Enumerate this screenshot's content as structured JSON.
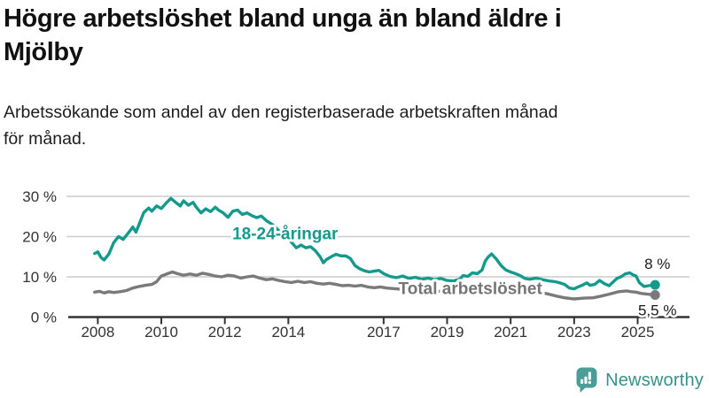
{
  "header": {
    "title_line1": "Högre arbetslöshet bland unga än bland äldre i",
    "title_line2": "Mjölby",
    "subtitle_line1": "Arbetssökande som andel av den registerbaserade arbetskraften månad",
    "subtitle_line2": "för månad."
  },
  "footer": {
    "logo_text": "Newsworthy"
  },
  "colors": {
    "youth_line": "#149a8c",
    "total_line": "#7a7a7a",
    "total_label": "#757575",
    "grid": "#cccccc",
    "axis": "#333333",
    "tick_label": "#333333",
    "end_label": "#1a1a1a",
    "title": "#111111",
    "logo_teal": "#4b9e96",
    "logo_text_teal": "#38918b"
  },
  "chart_data": {
    "type": "line",
    "title": "Högre arbetslöshet bland unga än bland äldre i Mjölby",
    "subtitle": "Arbetssökande som andel av den registerbaserade arbetskraften månad för månad.",
    "unit": "%",
    "grid": "horizontal",
    "legend_position": "inline-labels",
    "xlim": [
      2007.85,
      2025.6
    ],
    "ylim": [
      0,
      31
    ],
    "y_ticks": [
      {
        "value": 0,
        "label": "0 %"
      },
      {
        "value": 10,
        "label": "10 %"
      },
      {
        "value": 20,
        "label": "20 %"
      },
      {
        "value": 30,
        "label": "30 %"
      }
    ],
    "x_ticks": [
      {
        "value": 2008,
        "label": "2008"
      },
      {
        "value": 2010,
        "label": "2010"
      },
      {
        "value": 2012,
        "label": "2012"
      },
      {
        "value": 2014,
        "label": "2014"
      },
      {
        "value": 2017,
        "label": "2017"
      },
      {
        "value": 2019,
        "label": "2019"
      },
      {
        "value": 2021,
        "label": "2021"
      },
      {
        "value": 2023,
        "label": "2023"
      },
      {
        "value": 2025,
        "label": "2025"
      }
    ],
    "series": [
      {
        "name": "18-24-åringar",
        "color": "#149a8c",
        "label_color": "#149a8c",
        "end_label": "8 %",
        "end_value": 8.0,
        "label_pos": {
          "year": 2013.9,
          "pct": 20.8
        },
        "end_label_pos": {
          "year": 2025.62,
          "pct": 13.3
        },
        "points": [
          [
            2007.9,
            15.8
          ],
          [
            2008.0,
            16.2
          ],
          [
            2008.1,
            14.8
          ],
          [
            2008.2,
            14.2
          ],
          [
            2008.35,
            15.7
          ],
          [
            2008.5,
            18.5
          ],
          [
            2008.65,
            20.0
          ],
          [
            2008.8,
            19.3
          ],
          [
            2009.0,
            21.3
          ],
          [
            2009.1,
            22.4
          ],
          [
            2009.2,
            21.1
          ],
          [
            2009.35,
            24.0
          ],
          [
            2009.45,
            26.0
          ],
          [
            2009.6,
            27.1
          ],
          [
            2009.7,
            26.3
          ],
          [
            2009.85,
            27.6
          ],
          [
            2010.0,
            27.0
          ],
          [
            2010.15,
            28.3
          ],
          [
            2010.3,
            29.5
          ],
          [
            2010.45,
            28.5
          ],
          [
            2010.6,
            27.6
          ],
          [
            2010.7,
            28.9
          ],
          [
            2010.85,
            27.8
          ],
          [
            2011.0,
            28.5
          ],
          [
            2011.1,
            27.3
          ],
          [
            2011.25,
            25.9
          ],
          [
            2011.4,
            26.9
          ],
          [
            2011.55,
            26.2
          ],
          [
            2011.7,
            27.3
          ],
          [
            2011.8,
            26.6
          ],
          [
            2011.95,
            25.9
          ],
          [
            2012.1,
            24.8
          ],
          [
            2012.25,
            26.3
          ],
          [
            2012.4,
            26.6
          ],
          [
            2012.55,
            25.5
          ],
          [
            2012.7,
            25.9
          ],
          [
            2012.85,
            25.2
          ],
          [
            2013.0,
            24.7
          ],
          [
            2013.15,
            25.1
          ],
          [
            2013.3,
            24.0
          ],
          [
            2013.5,
            23.0
          ],
          [
            2013.7,
            21.5
          ],
          [
            2013.9,
            20.2
          ],
          [
            2014.1,
            18.6
          ],
          [
            2014.25,
            17.2
          ],
          [
            2014.4,
            17.9
          ],
          [
            2014.55,
            17.2
          ],
          [
            2014.7,
            17.5
          ],
          [
            2014.85,
            16.5
          ],
          [
            2015.0,
            15.0
          ],
          [
            2015.1,
            13.5
          ],
          [
            2015.2,
            14.3
          ],
          [
            2015.35,
            15.0
          ],
          [
            2015.5,
            15.6
          ],
          [
            2015.65,
            15.2
          ],
          [
            2015.8,
            15.2
          ],
          [
            2015.95,
            14.6
          ],
          [
            2016.1,
            12.8
          ],
          [
            2016.25,
            12.0
          ],
          [
            2016.4,
            11.5
          ],
          [
            2016.55,
            11.2
          ],
          [
            2016.7,
            11.4
          ],
          [
            2016.85,
            11.6
          ],
          [
            2017.0,
            10.8
          ],
          [
            2017.2,
            10.1
          ],
          [
            2017.4,
            9.8
          ],
          [
            2017.6,
            10.2
          ],
          [
            2017.8,
            9.6
          ],
          [
            2018.0,
            9.9
          ],
          [
            2018.2,
            9.4
          ],
          [
            2018.4,
            9.7
          ],
          [
            2018.6,
            9.3
          ],
          [
            2018.8,
            9.6
          ],
          [
            2019.0,
            9.1
          ],
          [
            2019.2,
            9.0
          ],
          [
            2019.4,
            9.4
          ],
          [
            2019.5,
            10.3
          ],
          [
            2019.65,
            10.1
          ],
          [
            2019.8,
            11.0
          ],
          [
            2019.95,
            10.8
          ],
          [
            2020.1,
            11.7
          ],
          [
            2020.2,
            13.9
          ],
          [
            2020.3,
            15.0
          ],
          [
            2020.4,
            15.7
          ],
          [
            2020.55,
            14.4
          ],
          [
            2020.7,
            12.8
          ],
          [
            2020.85,
            11.7
          ],
          [
            2021.0,
            11.2
          ],
          [
            2021.15,
            10.8
          ],
          [
            2021.3,
            10.3
          ],
          [
            2021.45,
            9.6
          ],
          [
            2021.6,
            9.4
          ],
          [
            2021.8,
            9.7
          ],
          [
            2022.0,
            9.3
          ],
          [
            2022.2,
            9.0
          ],
          [
            2022.4,
            8.8
          ],
          [
            2022.55,
            8.5
          ],
          [
            2022.7,
            8.1
          ],
          [
            2022.85,
            7.2
          ],
          [
            2023.0,
            7.0
          ],
          [
            2023.1,
            7.4
          ],
          [
            2023.25,
            7.9
          ],
          [
            2023.4,
            8.5
          ],
          [
            2023.5,
            7.9
          ],
          [
            2023.65,
            8.1
          ],
          [
            2023.8,
            9.1
          ],
          [
            2023.95,
            8.3
          ],
          [
            2024.1,
            7.8
          ],
          [
            2024.2,
            8.5
          ],
          [
            2024.35,
            9.6
          ],
          [
            2024.5,
            10.1
          ],
          [
            2024.6,
            10.7
          ],
          [
            2024.75,
            11.0
          ],
          [
            2024.85,
            10.5
          ],
          [
            2024.95,
            10.2
          ],
          [
            2025.05,
            8.6
          ],
          [
            2025.2,
            7.6
          ],
          [
            2025.35,
            7.8
          ],
          [
            2025.55,
            8.0
          ]
        ]
      },
      {
        "name": "Total arbetslöshet",
        "color": "#7a7a7a",
        "label_color": "#757575",
        "end_label": "5,5 %",
        "end_value": 5.5,
        "label_pos": {
          "year": 2019.73,
          "pct": 7.1
        },
        "end_label_pos": {
          "year": 2025.62,
          "pct": 1.8
        },
        "points": [
          [
            2007.9,
            6.2
          ],
          [
            2008.05,
            6.4
          ],
          [
            2008.2,
            6.0
          ],
          [
            2008.35,
            6.3
          ],
          [
            2008.5,
            6.1
          ],
          [
            2008.7,
            6.3
          ],
          [
            2008.9,
            6.6
          ],
          [
            2009.1,
            7.2
          ],
          [
            2009.3,
            7.6
          ],
          [
            2009.5,
            7.9
          ],
          [
            2009.7,
            8.1
          ],
          [
            2009.85,
            8.8
          ],
          [
            2010.0,
            10.2
          ],
          [
            2010.2,
            10.8
          ],
          [
            2010.35,
            11.2
          ],
          [
            2010.5,
            10.8
          ],
          [
            2010.7,
            10.4
          ],
          [
            2010.9,
            10.7
          ],
          [
            2011.1,
            10.4
          ],
          [
            2011.3,
            10.9
          ],
          [
            2011.5,
            10.6
          ],
          [
            2011.7,
            10.2
          ],
          [
            2011.9,
            10.0
          ],
          [
            2012.1,
            10.4
          ],
          [
            2012.3,
            10.2
          ],
          [
            2012.5,
            9.7
          ],
          [
            2012.7,
            10.0
          ],
          [
            2012.9,
            10.2
          ],
          [
            2013.1,
            9.7
          ],
          [
            2013.3,
            9.3
          ],
          [
            2013.5,
            9.5
          ],
          [
            2013.7,
            9.1
          ],
          [
            2013.9,
            8.8
          ],
          [
            2014.1,
            8.6
          ],
          [
            2014.3,
            8.9
          ],
          [
            2014.5,
            8.6
          ],
          [
            2014.7,
            8.8
          ],
          [
            2014.9,
            8.4
          ],
          [
            2015.1,
            8.2
          ],
          [
            2015.3,
            8.4
          ],
          [
            2015.5,
            8.1
          ],
          [
            2015.7,
            7.8
          ],
          [
            2015.9,
            7.9
          ],
          [
            2016.1,
            7.7
          ],
          [
            2016.3,
            7.9
          ],
          [
            2016.5,
            7.5
          ],
          [
            2016.7,
            7.3
          ],
          [
            2016.9,
            7.5
          ],
          [
            2017.1,
            7.2
          ],
          [
            2017.4,
            7.0
          ],
          [
            2017.7,
            6.8
          ],
          [
            2018.0,
            6.6
          ],
          [
            2018.3,
            6.5
          ],
          [
            2018.6,
            6.4
          ],
          [
            2019.0,
            6.5
          ],
          [
            2019.4,
            6.7
          ],
          [
            2019.8,
            6.9
          ],
          [
            2020.1,
            7.4
          ],
          [
            2020.4,
            8.2
          ],
          [
            2020.7,
            8.0
          ],
          [
            2021.0,
            7.6
          ],
          [
            2021.3,
            7.2
          ],
          [
            2021.6,
            6.7
          ],
          [
            2021.9,
            6.2
          ],
          [
            2022.2,
            5.7
          ],
          [
            2022.45,
            5.2
          ],
          [
            2022.7,
            4.8
          ],
          [
            2023.0,
            4.5
          ],
          [
            2023.3,
            4.7
          ],
          [
            2023.6,
            4.8
          ],
          [
            2023.85,
            5.2
          ],
          [
            2024.1,
            5.7
          ],
          [
            2024.4,
            6.3
          ],
          [
            2024.65,
            6.5
          ],
          [
            2024.8,
            6.3
          ],
          [
            2024.95,
            6.2
          ],
          [
            2025.1,
            5.9
          ],
          [
            2025.3,
            5.7
          ],
          [
            2025.55,
            5.5
          ]
        ]
      }
    ]
  }
}
